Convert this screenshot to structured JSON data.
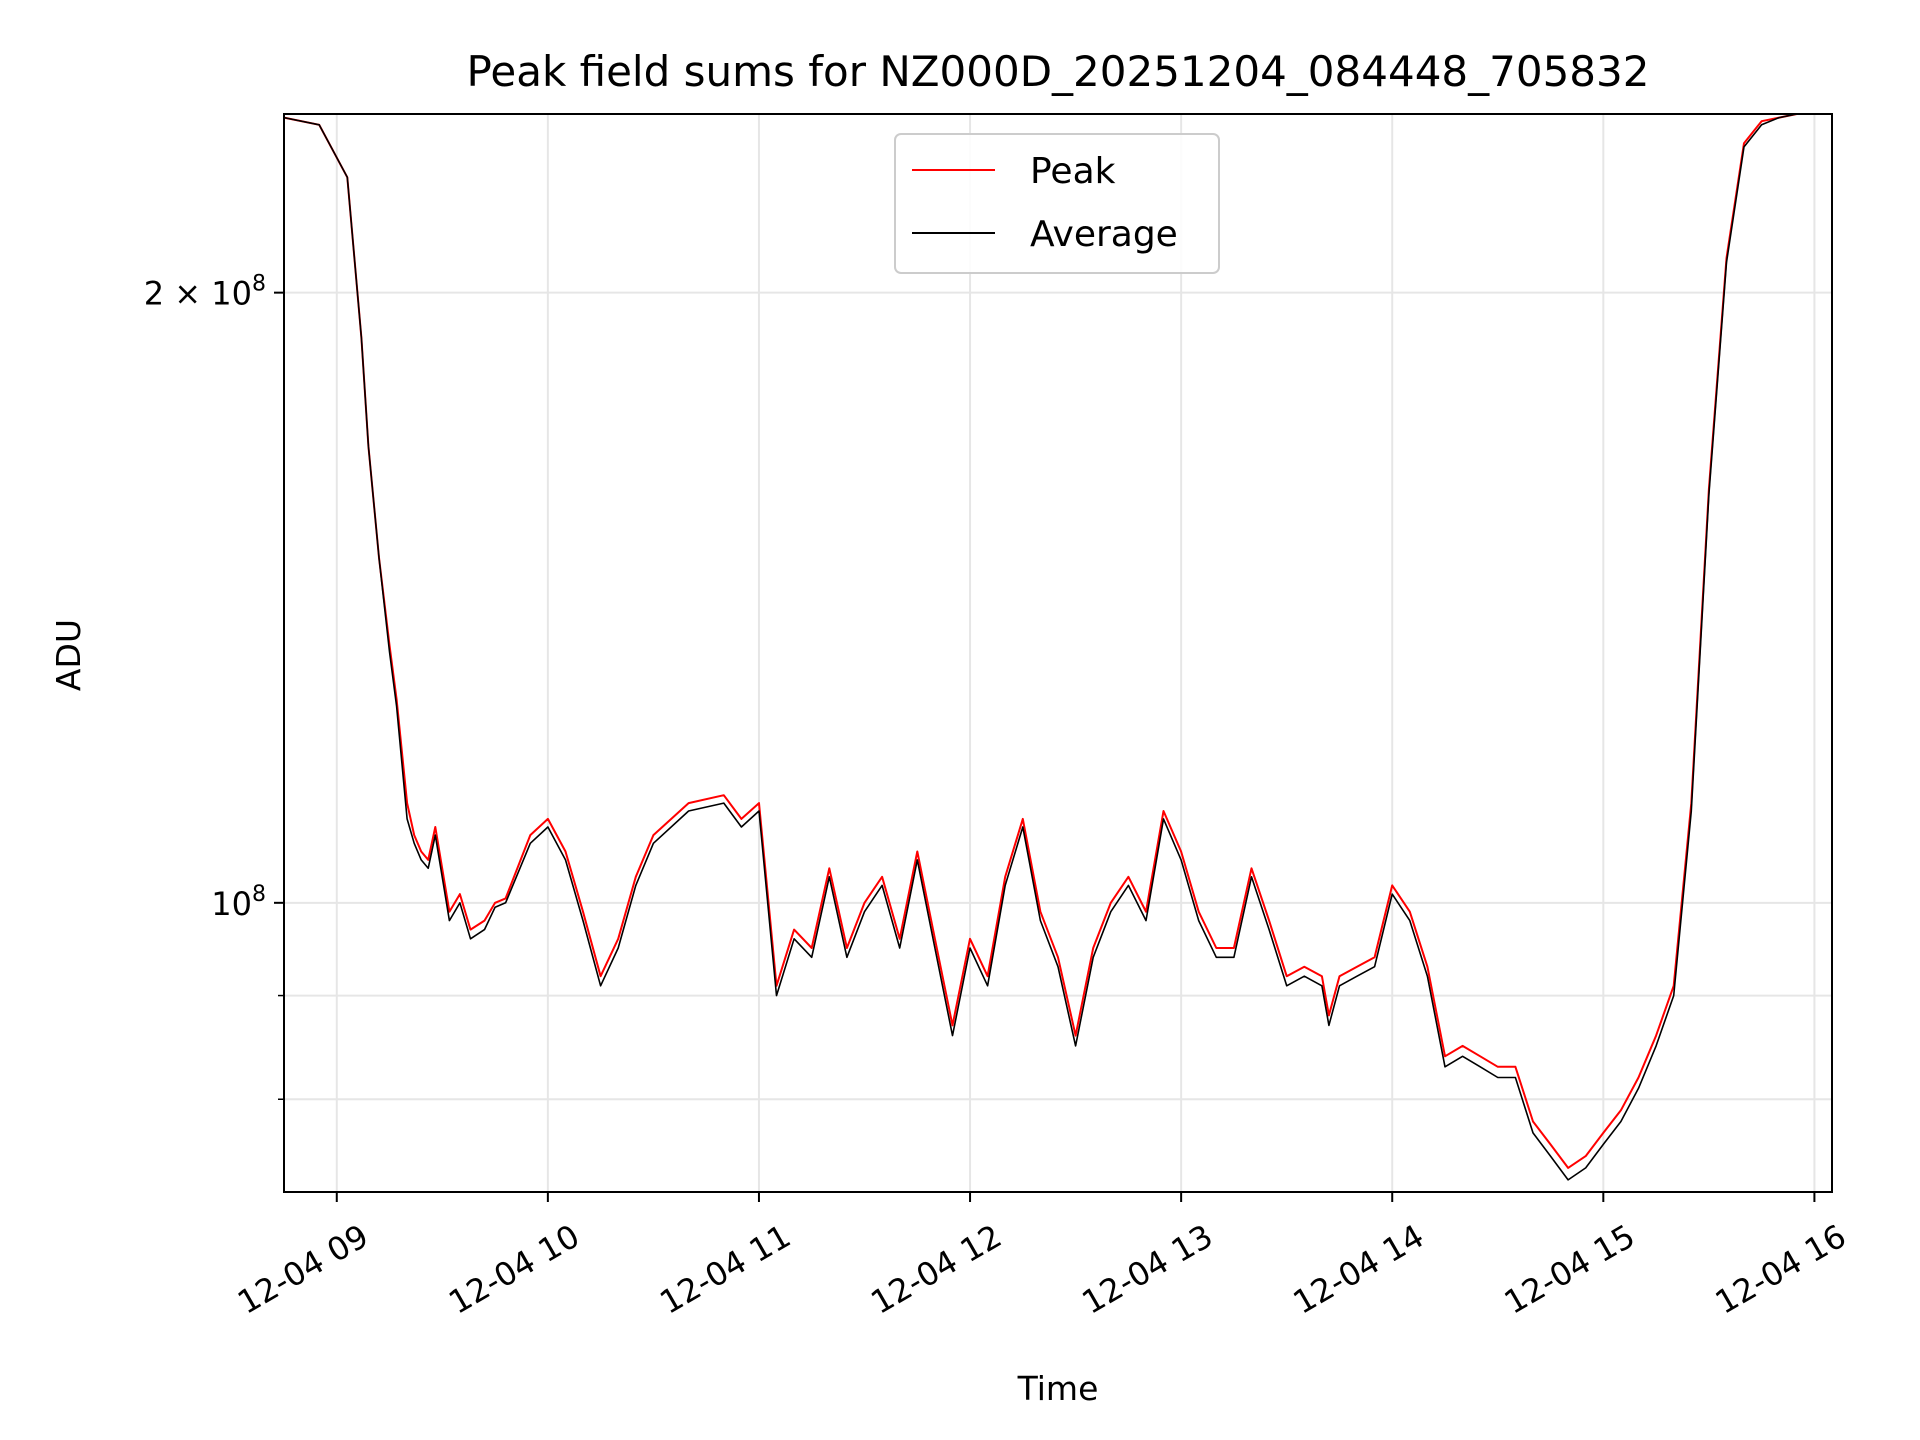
{
  "chart_data": {
    "type": "line",
    "title": "Peak field sums for NZ000D_20251204_084448_705832",
    "xlabel": "Time",
    "ylabel": "ADU",
    "yscale": "log",
    "xlim": [
      "12-04 08:45",
      "12-04 16:05"
    ],
    "ylim": [
      72000000,
      245000000
    ],
    "grid": true,
    "legend_position": "top-center",
    "x_ticks": [
      "12-04 09",
      "12-04 10",
      "12-04 11",
      "12-04 12",
      "12-04 13",
      "12-04 14",
      "12-04 15",
      "12-04 16"
    ],
    "y_major_ticks": [
      {
        "value": 100000000,
        "label": "10",
        "sup": "8"
      },
      {
        "value": 200000000,
        "label": "2 × 10",
        "sup": "8"
      }
    ],
    "y_minor_ticks": [
      80000000,
      90000000
    ],
    "colors": {
      "Peak": "#ff0000",
      "Average": "#000000"
    },
    "series": [
      {
        "name": "Peak",
        "x": [
          "08:45",
          "08:55",
          "09:03",
          "09:07",
          "09:09",
          "09:12",
          "09:15",
          "09:17",
          "09:20",
          "09:22",
          "09:24",
          "09:26",
          "09:28",
          "09:32",
          "09:35",
          "09:38",
          "09:42",
          "09:45",
          "09:48",
          "09:55",
          "10:00",
          "10:05",
          "10:10",
          "10:15",
          "10:20",
          "10:25",
          "10:30",
          "10:40",
          "10:50",
          "10:55",
          "11:00",
          "11:05",
          "11:10",
          "11:15",
          "11:20",
          "11:25",
          "11:30",
          "11:35",
          "11:40",
          "11:45",
          "11:50",
          "11:55",
          "12:00",
          "12:05",
          "12:10",
          "12:15",
          "12:20",
          "12:25",
          "12:30",
          "12:35",
          "12:40",
          "12:45",
          "12:50",
          "12:55",
          "13:00",
          "13:05",
          "13:10",
          "13:15",
          "13:20",
          "13:25",
          "13:30",
          "13:35",
          "13:40",
          "13:42",
          "13:45",
          "13:50",
          "13:55",
          "14:00",
          "14:05",
          "14:10",
          "14:15",
          "14:20",
          "14:25",
          "14:30",
          "14:35",
          "14:40",
          "14:45",
          "14:50",
          "14:55",
          "15:00",
          "15:05",
          "15:10",
          "15:15",
          "15:20",
          "15:25",
          "15:30",
          "15:35",
          "15:40",
          "15:45",
          "15:50",
          "15:55",
          "16:00",
          "16:05"
        ],
        "values": [
          244000000,
          242000000,
          228000000,
          190000000,
          168000000,
          148000000,
          134000000,
          126000000,
          112000000,
          108000000,
          106000000,
          105000000,
          109000000,
          99000000,
          101000000,
          97000000,
          98000000,
          100000000,
          100500000,
          108000000,
          110000000,
          106000000,
          99000000,
          92000000,
          96000000,
          103000000,
          108000000,
          112000000,
          113000000,
          110000000,
          112000000,
          91000000,
          97000000,
          95000000,
          104000000,
          95000000,
          100000000,
          103000000,
          96000000,
          106000000,
          96000000,
          87000000,
          96000000,
          92000000,
          103000000,
          110000000,
          99000000,
          94000000,
          86000000,
          95000000,
          100000000,
          103000000,
          99000000,
          111000000,
          106000000,
          99000000,
          95000000,
          95000000,
          104000000,
          98000000,
          92000000,
          93000000,
          92000000,
          88000000,
          92000000,
          93000000,
          94000000,
          102000000,
          99000000,
          93000000,
          84000000,
          85000000,
          84000000,
          83000000,
          83000000,
          78000000,
          76000000,
          74000000,
          75000000,
          77000000,
          79000000,
          82000000,
          86000000,
          91000000,
          112000000,
          160000000,
          208000000,
          237000000,
          243000000,
          244000000,
          245000000,
          245000000,
          245000000
        ]
      },
      {
        "name": "Average",
        "x": [
          "08:45",
          "08:55",
          "09:03",
          "09:07",
          "09:09",
          "09:12",
          "09:15",
          "09:17",
          "09:20",
          "09:22",
          "09:24",
          "09:26",
          "09:28",
          "09:32",
          "09:35",
          "09:38",
          "09:42",
          "09:45",
          "09:48",
          "09:55",
          "10:00",
          "10:05",
          "10:10",
          "10:15",
          "10:20",
          "10:25",
          "10:30",
          "10:40",
          "10:50",
          "10:55",
          "11:00",
          "11:05",
          "11:10",
          "11:15",
          "11:20",
          "11:25",
          "11:30",
          "11:35",
          "11:40",
          "11:45",
          "11:50",
          "11:55",
          "12:00",
          "12:05",
          "12:10",
          "12:15",
          "12:20",
          "12:25",
          "12:30",
          "12:35",
          "12:40",
          "12:45",
          "12:50",
          "12:55",
          "13:00",
          "13:05",
          "13:10",
          "13:15",
          "13:20",
          "13:25",
          "13:30",
          "13:35",
          "13:40",
          "13:42",
          "13:45",
          "13:50",
          "13:55",
          "14:00",
          "14:05",
          "14:10",
          "14:15",
          "14:20",
          "14:25",
          "14:30",
          "14:35",
          "14:40",
          "14:45",
          "14:50",
          "14:55",
          "15:00",
          "15:05",
          "15:10",
          "15:15",
          "15:20",
          "15:25",
          "15:30",
          "15:35",
          "15:40",
          "15:45",
          "15:50",
          "15:55",
          "16:00",
          "16:05"
        ],
        "values": [
          244000000,
          242000000,
          228000000,
          190000000,
          168000000,
          148000000,
          133000000,
          125000000,
          110000000,
          107000000,
          105000000,
          104000000,
          108000000,
          98000000,
          100000000,
          96000000,
          97000000,
          99500000,
          100000000,
          107000000,
          109000000,
          105000000,
          98000000,
          91000000,
          95000000,
          102000000,
          107000000,
          111000000,
          112000000,
          109000000,
          111000000,
          90000000,
          96000000,
          94000000,
          103000000,
          94000000,
          99000000,
          102000000,
          95000000,
          105000000,
          95000000,
          86000000,
          95000000,
          91000000,
          102000000,
          109000000,
          98000000,
          93000000,
          85000000,
          94000000,
          99000000,
          102000000,
          98000000,
          110000000,
          105000000,
          98000000,
          94000000,
          94000000,
          103000000,
          97000000,
          91000000,
          92000000,
          91000000,
          87000000,
          91000000,
          92000000,
          93000000,
          101000000,
          98000000,
          92000000,
          83000000,
          84000000,
          83000000,
          82000000,
          82000000,
          77000000,
          75000000,
          73000000,
          74000000,
          76000000,
          78000000,
          81000000,
          85000000,
          90000000,
          111000000,
          159000000,
          207000000,
          236000000,
          242000000,
          244000000,
          245000000,
          245000000,
          245000000
        ]
      }
    ]
  }
}
